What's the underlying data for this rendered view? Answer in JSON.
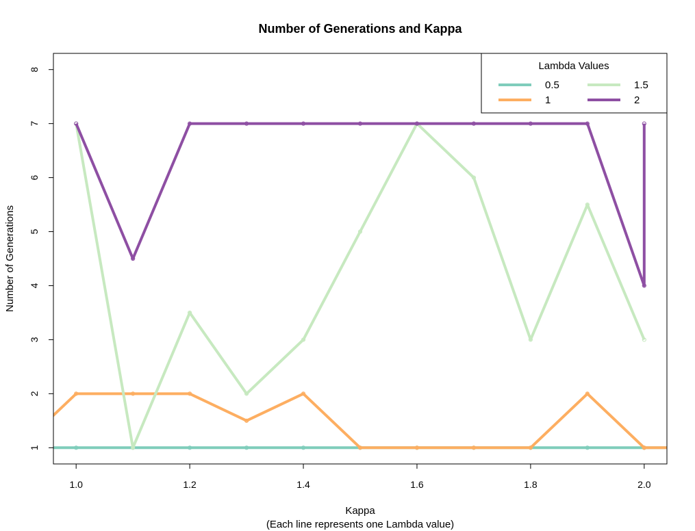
{
  "chart_data": {
    "type": "line",
    "title": "Number of Generations and Kappa",
    "xlabel": "Kappa",
    "xlabel_sub": "(Each line represents one Lambda value)",
    "ylabel": "Number of Generations",
    "xlim": [
      0.96,
      2.04
    ],
    "ylim": [
      0.7,
      8.3
    ],
    "x_ticks": [
      1.0,
      1.2,
      1.4,
      1.6,
      1.8,
      2.0
    ],
    "x_tick_labels": [
      "1.0",
      "1.2",
      "1.4",
      "1.6",
      "1.8",
      "2.0"
    ],
    "y_ticks": [
      1,
      2,
      3,
      4,
      5,
      6,
      7,
      8
    ],
    "y_tick_labels": [
      "1",
      "2",
      "3",
      "4",
      "5",
      "6",
      "7",
      "8"
    ],
    "grid": false,
    "legend": {
      "title": "Lambda Values",
      "position": "top-right",
      "columns": 2
    },
    "series": [
      {
        "name": "0.5",
        "color": "#7fcdbb",
        "x": [
          0.9,
          1.0,
          1.1,
          1.2,
          1.3,
          1.4,
          1.5,
          1.6,
          1.7,
          1.8,
          1.9,
          2.0,
          2.0,
          2.1
        ],
        "values": [
          1,
          1,
          1,
          1,
          1,
          1,
          1,
          1,
          1,
          1,
          1,
          1,
          1,
          1
        ]
      },
      {
        "name": "1",
        "color": "#fdae61",
        "x": [
          0.9,
          1.0,
          1.1,
          1.2,
          1.3,
          1.4,
          1.5,
          1.6,
          1.7,
          1.8,
          1.9,
          2.0,
          2.0,
          2.1
        ],
        "values": [
          1,
          2,
          2,
          2,
          1.5,
          2,
          1,
          1,
          1,
          1,
          2,
          1,
          1,
          1
        ]
      },
      {
        "name": "1.5",
        "color": "#c7e9c0",
        "x": [
          1.0,
          1.1,
          1.2,
          1.3,
          1.4,
          1.5,
          1.6,
          1.7,
          1.8,
          1.9,
          2.0
        ],
        "values": [
          7,
          1,
          3.5,
          2,
          3,
          5,
          7,
          6,
          3,
          5.5,
          3
        ]
      },
      {
        "name": "2",
        "color": "#8e4fa3",
        "x": [
          1.0,
          1.1,
          1.2,
          1.3,
          1.4,
          1.5,
          1.6,
          1.7,
          1.8,
          1.9,
          2.0,
          2.0
        ],
        "values": [
          7,
          4.5,
          7,
          7,
          7,
          7,
          7,
          7,
          7,
          7,
          4,
          7
        ]
      }
    ]
  }
}
